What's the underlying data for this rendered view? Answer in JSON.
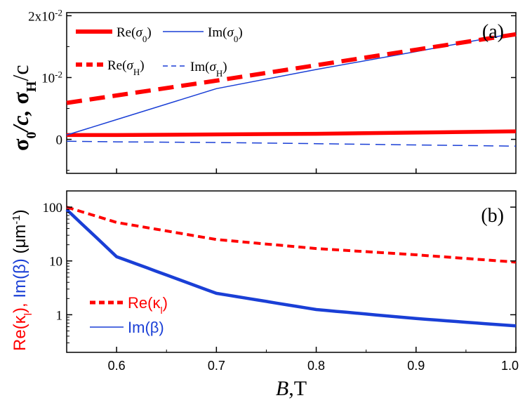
{
  "chart_data": [
    {
      "panel_label": "(a)",
      "type": "line",
      "ylabel": {
        "sigma": "σ",
        "sub0": "0",
        "slash_c": "/c, ",
        "sigmaH": "σ",
        "subH": "H",
        "tail": "/c"
      },
      "x": [
        0.55,
        0.6,
        0.7,
        0.8,
        0.9,
        1.0
      ],
      "xlim": [
        0.55,
        1.0
      ],
      "ylim": [
        -0.0055,
        0.0205
      ],
      "yticks": [
        {
          "value": 0.0,
          "label": "0",
          "exp": ""
        },
        {
          "value": 0.01,
          "label": "10",
          "exp": "-2"
        },
        {
          "value": 0.02,
          "label": "2x10",
          "exp": "-2"
        }
      ],
      "series": [
        {
          "name": "Re(σ0)",
          "color": "#ff0000",
          "style": "thick-solid",
          "values": [
            0.0007,
            0.0007,
            0.0008,
            0.0009,
            0.0011,
            0.0013
          ]
        },
        {
          "name": "Im(σ0)",
          "color": "#1a3fd6",
          "style": "thin-solid",
          "values": [
            0.0007,
            0.0032,
            0.0082,
            0.0113,
            0.0142,
            0.0172
          ]
        },
        {
          "name": "Re(σH)",
          "color": "#ff0000",
          "style": "thick-dash",
          "values": [
            0.0059,
            0.0071,
            0.0095,
            0.012,
            0.0145,
            0.017
          ]
        },
        {
          "name": "Im(σH)",
          "color": "#1a3fd6",
          "style": "thin-dash",
          "values": [
            -0.0003,
            -0.0004,
            -0.0005,
            -0.0007,
            -0.0009,
            -0.0011
          ]
        }
      ],
      "legend": [
        {
          "prefix": "Re(",
          "var": "σ",
          "sub": "0",
          "suffix": ")"
        },
        {
          "prefix": "Im(",
          "var": "σ",
          "sub": "0",
          "suffix": ")"
        },
        {
          "prefix": "Re(",
          "var": "σ",
          "sub": "H",
          "suffix": ")"
        },
        {
          "prefix": "Im(",
          "var": "σ",
          "sub": "H",
          "suffix": ")"
        }
      ]
    },
    {
      "panel_label": "(b)",
      "type": "line",
      "yscale": "log",
      "ylabel": {
        "re": "Re(κ",
        "re_sub": "l",
        "re_close": "), ",
        "im": "Im(β)",
        "unit": " (μm",
        "unit_exp": "-1",
        "unit_close": ")"
      },
      "xlabel": {
        "var": "B",
        "unit": ",T"
      },
      "x": [
        0.55,
        0.6,
        0.7,
        0.8,
        0.9,
        1.0
      ],
      "xlim": [
        0.55,
        1.0
      ],
      "ylim": [
        0.2,
        200
      ],
      "xticks": [
        "0.6",
        "0.7",
        "0.8",
        "0.9",
        "1.0"
      ],
      "yticks": [
        {
          "value": 1,
          "label": "1"
        },
        {
          "value": 10,
          "label": "10"
        },
        {
          "value": 100,
          "label": "100"
        }
      ],
      "series": [
        {
          "name": "Re(κl)",
          "color": "#ff0000",
          "style": "thick-dash",
          "values": [
            100,
            52,
            25,
            17,
            13,
            9.5
          ]
        },
        {
          "name": "Im(β)",
          "color": "#1a3fd6",
          "style": "thick-solid",
          "values": [
            90,
            12,
            2.5,
            1.25,
            0.85,
            0.62
          ]
        }
      ],
      "legend": [
        {
          "prefix": "Re(",
          "var": "κ",
          "sub": "l",
          "suffix": ")"
        },
        {
          "prefix": "Im(β)",
          "var": "",
          "sub": "",
          "suffix": ""
        }
      ]
    }
  ]
}
